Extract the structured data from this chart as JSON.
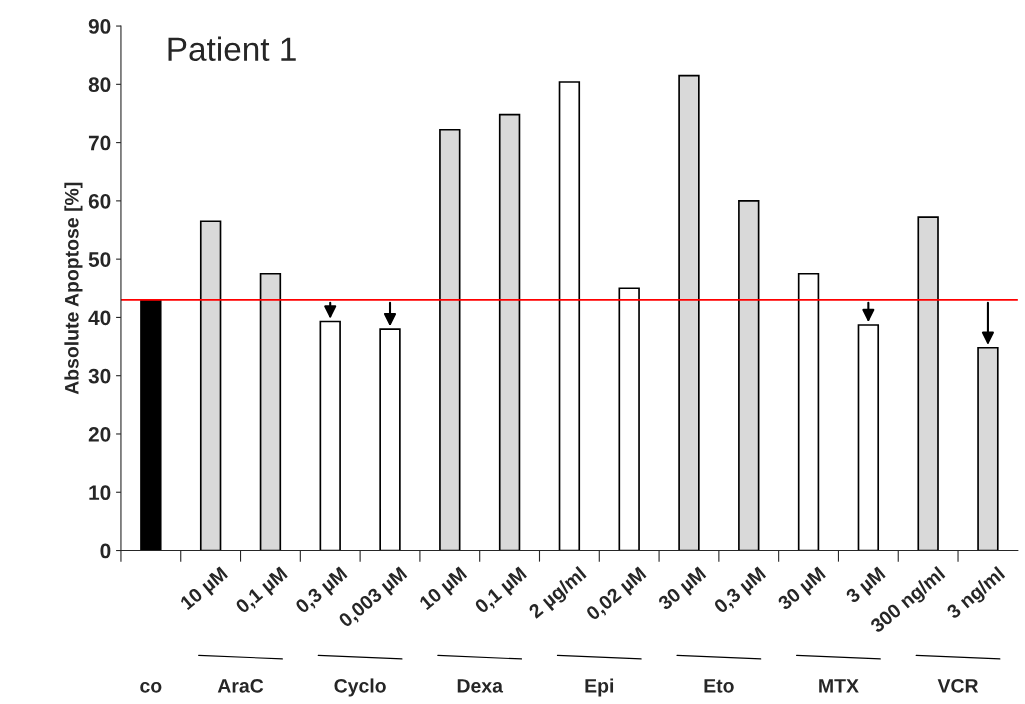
{
  "chart_data": {
    "type": "bar",
    "title": "Patient 1",
    "ylabel": "Absolute Apoptose [%]",
    "categories": [
      null,
      "10 µM",
      "0,1 µM",
      "0,3 µM",
      "0,003 µM",
      "10 µM",
      "0,1 µM",
      "2 µg/ml",
      "0,02 µM",
      "30 µM",
      "0,3 µM",
      "30 µM",
      "3 µM",
      "300 ng/ml",
      "3 ng/ml"
    ],
    "values": [
      43,
      56.5,
      47.5,
      39.3,
      38,
      72.2,
      74.8,
      80.4,
      45,
      81.5,
      60,
      47.5,
      38.7,
      57.2,
      34.8
    ],
    "colors": [
      "#000000",
      "#d9d9d9",
      "#d9d9d9",
      "#ffffff",
      "#ffffff",
      "#d9d9d9",
      "#d9d9d9",
      "#ffffff",
      "#ffffff",
      "#d9d9d9",
      "#d9d9d9",
      "#ffffff",
      "#ffffff",
      "#d9d9d9",
      "#d9d9d9"
    ],
    "ylim": [
      0,
      90
    ],
    "yticks": [
      0,
      10,
      20,
      30,
      40,
      50,
      60,
      70,
      80,
      90
    ],
    "ref_lines": [
      {
        "axis": "y",
        "value": 43,
        "color": "#ff0000"
      }
    ],
    "annotations": [
      "co",
      "AraC",
      "Cyclo",
      "Dexa",
      "Epi",
      "Eto",
      "MTX",
      "VCR"
    ],
    "grid": false,
    "legend": false
  }
}
